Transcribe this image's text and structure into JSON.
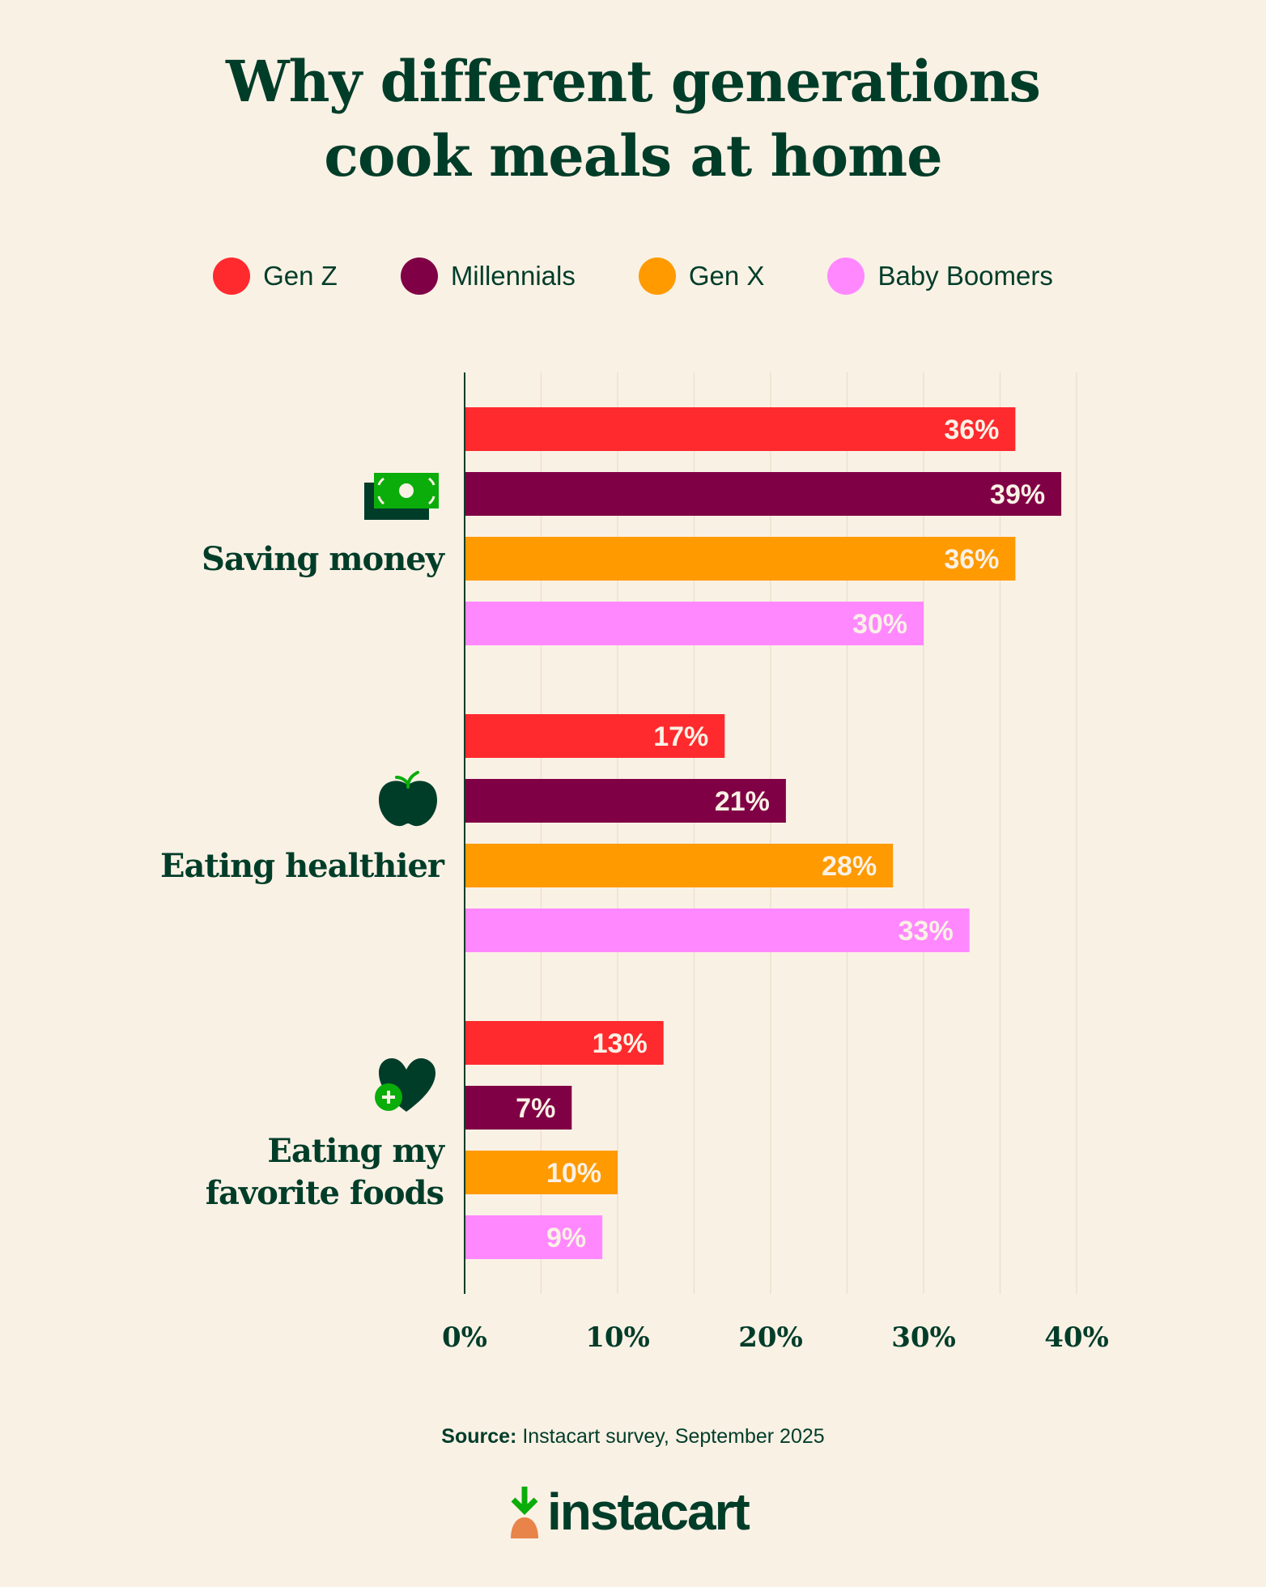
{
  "colors": {
    "background": "#FAF1E5",
    "text": "#003D29",
    "accent_green": "#0AAD0A",
    "label_text": "#FAF1E5",
    "logo_carrot": "#E8834A"
  },
  "chart_data": {
    "type": "bar",
    "orientation": "horizontal",
    "title": "Why different generations cook meals at home",
    "title_lines": [
      "Why different generations",
      "cook meals at home"
    ],
    "categories": [
      "Saving money",
      "Eating healthier",
      "Eating my favorite foods"
    ],
    "category_lines": [
      [
        "Saving money"
      ],
      [
        "Eating healthier"
      ],
      [
        "Eating my",
        "favorite foods"
      ]
    ],
    "category_icons": [
      "money-icon",
      "apple-icon",
      "heart-plus-icon"
    ],
    "series": [
      {
        "name": "Gen Z",
        "color": "#FF2A2E",
        "values": [
          36,
          17,
          13
        ]
      },
      {
        "name": "Millennials",
        "color": "#800045",
        "values": [
          39,
          21,
          7
        ]
      },
      {
        "name": "Gen X",
        "color": "#FF9A00",
        "values": [
          36,
          28,
          10
        ]
      },
      {
        "name": "Baby Boomers",
        "color": "#FF88FF",
        "values": [
          30,
          33,
          9
        ]
      }
    ],
    "data_labels": [
      [
        "36%",
        "17%",
        "13%"
      ],
      [
        "39%",
        "21%",
        "7%"
      ],
      [
        "36%",
        "28%",
        "10%"
      ],
      [
        "30%",
        "33%",
        "9%"
      ]
    ],
    "xlim": [
      0,
      40
    ],
    "x_ticks": [
      0,
      10,
      20,
      30,
      40
    ],
    "x_tick_labels": [
      "0%",
      "10%",
      "20%",
      "30%",
      "40%"
    ],
    "grid": true,
    "legend_position": "top"
  },
  "source": {
    "label": "Source:",
    "text": " Instacart survey, September 2025"
  },
  "logo": {
    "text": "instacart"
  }
}
